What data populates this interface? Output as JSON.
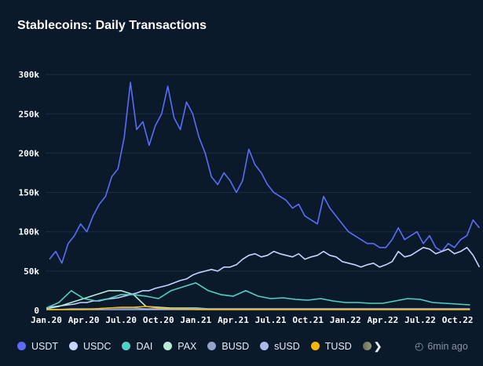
{
  "title": "Stablecoins: Daily Transactions",
  "updated": "6min ago",
  "chart_data": {
    "type": "line",
    "title": "Stablecoins: Daily Transactions",
    "x_ticks": [
      "Jan.20",
      "Apr.20",
      "Jul.20",
      "Oct.20",
      "Jan.21",
      "Apr.21",
      "Jul.21",
      "Oct.21",
      "Jan.22",
      "Apr.22",
      "Jul.22",
      "Oct.22"
    ],
    "y_ticks": [
      "0",
      "50k",
      "100k",
      "150k",
      "200k",
      "250k",
      "300k"
    ],
    "ylim": [
      0,
      330000
    ],
    "x_range": [
      "2020-01-01",
      "2022-11-15"
    ],
    "grid": true,
    "legend": "bottom",
    "series": [
      {
        "name": "USDT",
        "color": "#5b6cf9",
        "period": "semi-monthly",
        "values": [
          65,
          75,
          60,
          85,
          95,
          110,
          100,
          120,
          135,
          145,
          170,
          180,
          220,
          290,
          230,
          240,
          210,
          235,
          250,
          285,
          245,
          230,
          265,
          250,
          220,
          200,
          170,
          160,
          175,
          165,
          150,
          165,
          205,
          185,
          175,
          160,
          150,
          145,
          140,
          130,
          135,
          120,
          115,
          110,
          145,
          130,
          120,
          110,
          100,
          95,
          90,
          85,
          85,
          80,
          80,
          90,
          105,
          90,
          95,
          100,
          85,
          95,
          80,
          75,
          85,
          80,
          90,
          95,
          115,
          105
        ]
      },
      {
        "name": "USDC",
        "color": "#c6d4ff",
        "period": "semi-monthly",
        "values": [
          4,
          5,
          6,
          7,
          8,
          10,
          10,
          12,
          12,
          14,
          15,
          16,
          18,
          20,
          22,
          25,
          25,
          28,
          30,
          32,
          35,
          38,
          40,
          45,
          48,
          50,
          52,
          50,
          55,
          55,
          58,
          65,
          70,
          72,
          68,
          70,
          75,
          72,
          70,
          68,
          72,
          65,
          68,
          70,
          75,
          70,
          68,
          62,
          60,
          58,
          55,
          58,
          60,
          55,
          58,
          62,
          75,
          68,
          70,
          75,
          80,
          78,
          72,
          75,
          78,
          72,
          75,
          80,
          70,
          55
        ]
      },
      {
        "name": "PAX",
        "color": "#b8ecd9",
        "period": "monthly",
        "values": [
          2,
          5,
          10,
          15,
          20,
          25,
          25,
          20,
          5,
          4,
          3,
          3,
          3,
          2,
          2,
          2,
          2,
          2,
          2,
          2,
          2,
          2,
          2,
          2,
          2,
          2,
          2,
          2,
          2,
          2,
          2,
          2,
          2,
          2,
          2
        ]
      },
      {
        "name": "DAI",
        "color": "#4fd1c5",
        "period": "monthly",
        "values": [
          3,
          10,
          25,
          15,
          12,
          15,
          20,
          20,
          18,
          15,
          25,
          30,
          35,
          25,
          20,
          18,
          25,
          18,
          15,
          16,
          14,
          13,
          15,
          12,
          10,
          10,
          9,
          9,
          12,
          15,
          14,
          10,
          9,
          8,
          7
        ]
      },
      {
        "name": "BUSD",
        "color": "#94a3c8",
        "period": "monthly",
        "values": [
          1,
          1,
          2,
          2,
          2,
          3,
          3,
          3,
          2,
          2,
          2,
          2,
          2,
          2,
          2,
          2,
          2,
          2,
          2,
          2,
          2,
          2,
          2,
          2,
          2,
          2,
          2,
          2,
          2,
          2,
          2,
          2,
          2,
          2,
          2
        ]
      },
      {
        "name": "sUSD",
        "color": "#aab8ec",
        "period": "monthly",
        "values": [
          1,
          1,
          1,
          1,
          1,
          1,
          1,
          1,
          1,
          1,
          1,
          1,
          1,
          1,
          1,
          1,
          1,
          1,
          1,
          1,
          1,
          1,
          1,
          1,
          1,
          1,
          1,
          1,
          1,
          1,
          1,
          1,
          1,
          1,
          1
        ]
      },
      {
        "name": "TUSD",
        "color": "#f5b70a",
        "period": "monthly",
        "values": [
          1,
          1,
          1,
          1,
          2,
          3,
          4,
          4,
          5,
          3,
          2,
          2,
          1,
          1,
          1,
          1,
          1,
          1,
          1,
          1,
          1,
          1,
          1,
          1,
          1,
          1,
          1,
          1,
          1,
          1,
          1,
          1,
          1,
          1,
          1
        ]
      }
    ],
    "value_unit": "k"
  },
  "legend_more_color": "#6b6b55"
}
